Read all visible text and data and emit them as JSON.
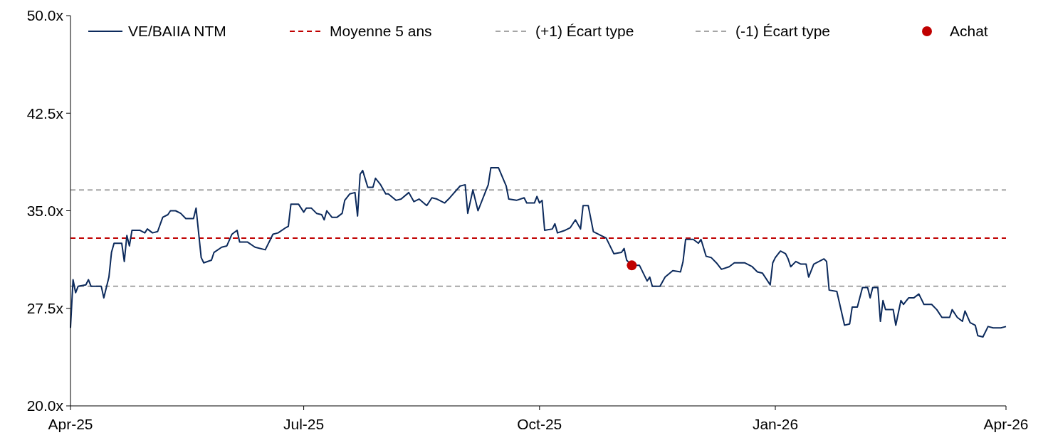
{
  "chart_data": {
    "type": "line",
    "xlim": [
      "2025-04-01",
      "2026-04-01"
    ],
    "xticks": [
      {
        "value": "2025-04-01",
        "label": "Apr-25"
      },
      {
        "value": "2025-07-01",
        "label": "Jul-25"
      },
      {
        "value": "2025-10-01",
        "label": "Oct-25"
      },
      {
        "value": "2026-01-01",
        "label": "Jan-26"
      },
      {
        "value": "2026-04-01",
        "label": "Apr-26"
      }
    ],
    "ylim": [
      20,
      50
    ],
    "yticks": [
      {
        "value": 20,
        "label": "20.0x"
      },
      {
        "value": 27.5,
        "label": "27.5x"
      },
      {
        "value": 35,
        "label": "35.0x"
      },
      {
        "value": 42.5,
        "label": "42.5x"
      },
      {
        "value": 50,
        "label": "50.0x"
      }
    ],
    "grid": false,
    "legend": "top",
    "series": [
      {
        "name": "VE/BAIIA NTM",
        "color": "#0c2a5c",
        "marker": "none",
        "line_style": "solid",
        "x": [
          "2025-04-01",
          "2025-04-02",
          "2025-04-03",
          "2025-04-04",
          "2025-04-07",
          "2025-04-08",
          "2025-04-09",
          "2025-04-13",
          "2025-04-14",
          "2025-04-16",
          "2025-04-17",
          "2025-04-18",
          "2025-04-21",
          "2025-04-22",
          "2025-04-23",
          "2025-04-24",
          "2025-04-25",
          "2025-04-28",
          "2025-04-30",
          "2025-05-01",
          "2025-05-03",
          "2025-05-05",
          "2025-05-07",
          "2025-05-09",
          "2025-05-10",
          "2025-05-12",
          "2025-05-14",
          "2025-05-16",
          "2025-05-19",
          "2025-05-20",
          "2025-05-22",
          "2025-05-23",
          "2025-05-26",
          "2025-05-27",
          "2025-05-30",
          "2025-06-01",
          "2025-06-03",
          "2025-06-05",
          "2025-06-06",
          "2025-06-09",
          "2025-06-12",
          "2025-06-16",
          "2025-06-19",
          "2025-06-21",
          "2025-06-24",
          "2025-06-25",
          "2025-06-26",
          "2025-06-29",
          "2025-07-01",
          "2025-07-02",
          "2025-07-04",
          "2025-07-06",
          "2025-07-08",
          "2025-07-09",
          "2025-07-10",
          "2025-07-12",
          "2025-07-14",
          "2025-07-16",
          "2025-07-17",
          "2025-07-19",
          "2025-07-21",
          "2025-07-22",
          "2025-07-23",
          "2025-07-24",
          "2025-07-26",
          "2025-07-28",
          "2025-07-29",
          "2025-07-31",
          "2025-08-02",
          "2025-08-03",
          "2025-08-06",
          "2025-08-08",
          "2025-08-11",
          "2025-08-13",
          "2025-08-15",
          "2025-08-18",
          "2025-08-20",
          "2025-08-22",
          "2025-08-25",
          "2025-08-27",
          "2025-08-31",
          "2025-09-02",
          "2025-09-03",
          "2025-09-05",
          "2025-09-07",
          "2025-09-09",
          "2025-09-11",
          "2025-09-12",
          "2025-09-15",
          "2025-09-18",
          "2025-09-19",
          "2025-09-22",
          "2025-09-25",
          "2025-09-26",
          "2025-09-29",
          "2025-09-30",
          "2025-10-01",
          "2025-10-02",
          "2025-10-03",
          "2025-10-06",
          "2025-10-07",
          "2025-10-08",
          "2025-10-11",
          "2025-10-13",
          "2025-10-15",
          "2025-10-17",
          "2025-10-18",
          "2025-10-20",
          "2025-10-22",
          "2025-10-25",
          "2025-10-27",
          "2025-10-30",
          "2025-11-02",
          "2025-11-03",
          "2025-11-04",
          "2025-11-06",
          "2025-11-09",
          "2025-11-12",
          "2025-11-13",
          "2025-11-14",
          "2025-11-17",
          "2025-11-19",
          "2025-11-22",
          "2025-11-25",
          "2025-11-26",
          "2025-11-27",
          "2025-11-30",
          "2025-12-02",
          "2025-12-03",
          "2025-12-05",
          "2025-12-07",
          "2025-12-09",
          "2025-12-11",
          "2025-12-14",
          "2025-12-16",
          "2025-12-20",
          "2025-12-23",
          "2025-12-25",
          "2025-12-27",
          "2025-12-30",
          "2025-12-31",
          "2026-01-01",
          "2026-01-03",
          "2026-01-05",
          "2026-01-06",
          "2026-01-07",
          "2026-01-09",
          "2026-01-11",
          "2026-01-13",
          "2026-01-14",
          "2026-01-16",
          "2026-01-18",
          "2026-01-20",
          "2026-01-21",
          "2026-01-22",
          "2026-01-25",
          "2026-01-28",
          "2026-01-30",
          "2026-01-31",
          "2026-02-02",
          "2026-02-04",
          "2026-02-06",
          "2026-02-07",
          "2026-02-08",
          "2026-02-10",
          "2026-02-11",
          "2026-02-12",
          "2026-02-13",
          "2026-02-16",
          "2026-02-17",
          "2026-02-19",
          "2026-02-20",
          "2026-02-22",
          "2026-02-24",
          "2026-02-26",
          "2026-02-28",
          "2026-03-03",
          "2026-03-05",
          "2026-03-07",
          "2026-03-10",
          "2026-03-11",
          "2026-03-13",
          "2026-03-15",
          "2026-03-16",
          "2026-03-18",
          "2026-03-20",
          "2026-03-21",
          "2026-03-23",
          "2026-03-25",
          "2026-03-27",
          "2026-03-30",
          "2026-04-01"
        ],
        "values": [
          26.0,
          29.7,
          28.7,
          29.2,
          29.3,
          29.7,
          29.2,
          29.2,
          28.3,
          29.9,
          31.8,
          32.5,
          32.5,
          31.1,
          33.1,
          32.3,
          33.5,
          33.5,
          33.3,
          33.6,
          33.3,
          33.4,
          34.5,
          34.7,
          35.0,
          35.0,
          34.8,
          34.4,
          34.4,
          35.2,
          31.4,
          31.0,
          31.2,
          31.8,
          32.2,
          32.3,
          33.2,
          33.5,
          32.6,
          32.6,
          32.2,
          32.0,
          33.2,
          33.3,
          33.7,
          33.8,
          35.5,
          35.5,
          34.9,
          35.2,
          35.2,
          34.8,
          34.7,
          34.3,
          35.0,
          34.5,
          34.5,
          34.8,
          35.8,
          36.3,
          36.4,
          34.6,
          37.8,
          38.1,
          36.8,
          36.8,
          37.5,
          37.0,
          36.3,
          36.3,
          35.8,
          35.9,
          36.4,
          35.7,
          35.9,
          35.4,
          36.0,
          35.9,
          35.6,
          36.0,
          36.9,
          37.0,
          34.8,
          36.6,
          35.0,
          36.0,
          37.0,
          38.3,
          38.3,
          36.9,
          35.9,
          35.8,
          36.0,
          35.6,
          35.6,
          36.1,
          35.6,
          35.8,
          33.5,
          33.6,
          34.0,
          33.3,
          33.5,
          33.7,
          34.3,
          33.6,
          35.4,
          35.4,
          33.4,
          33.1,
          32.9,
          31.7,
          31.8,
          32.1,
          31.2,
          30.8,
          30.8,
          29.6,
          29.9,
          29.2,
          29.2,
          29.9,
          30.4,
          30.3,
          31.1,
          32.8,
          32.8,
          32.5,
          32.8,
          31.5,
          31.4,
          31.0,
          30.5,
          30.7,
          31.0,
          31.0,
          30.7,
          30.3,
          30.2,
          29.3,
          31.0,
          31.4,
          31.9,
          31.7,
          31.3,
          30.7,
          31.1,
          30.9,
          30.9,
          29.9,
          30.9,
          31.1,
          31.3,
          31.1,
          28.9,
          28.8,
          26.2,
          26.3,
          27.6,
          27.6,
          29.1,
          29.1,
          28.3,
          29.1,
          29.1,
          26.5,
          28.1,
          27.4,
          27.4,
          26.2,
          28.1,
          27.8,
          28.3,
          28.3,
          28.6,
          27.8,
          27.8,
          27.4,
          26.8,
          26.8,
          27.4,
          26.8,
          26.5,
          27.3,
          26.4,
          26.2,
          25.4,
          25.3,
          26.1,
          26.0,
          26.0,
          26.1
        ]
      },
      {
        "name": "Achat",
        "type": "scatter",
        "color": "#c00000",
        "marker": "circle",
        "x": [
          "2025-11-06"
        ],
        "values": [
          30.8
        ]
      }
    ],
    "ref_lines": [
      {
        "axis": "y",
        "value": 32.9,
        "label": "Moyenne 5 ans",
        "color": "#c00000",
        "line_style": "dashed"
      },
      {
        "axis": "y",
        "value": 36.6,
        "label": "(+1) Écart type",
        "color": "#a6a6a6",
        "line_style": "dashed"
      },
      {
        "axis": "y",
        "value": 29.2,
        "label": "(-1) Écart type",
        "color": "#a6a6a6",
        "line_style": "dashed"
      }
    ]
  }
}
